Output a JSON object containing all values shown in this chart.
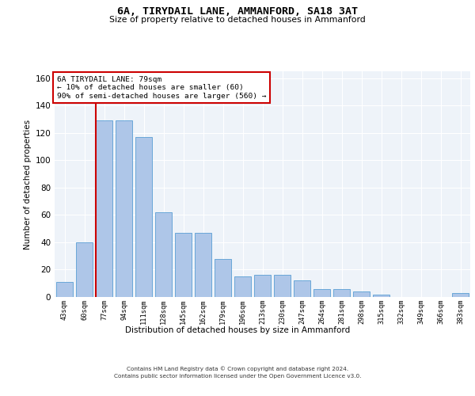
{
  "title1": "6A, TIRYDAIL LANE, AMMANFORD, SA18 3AT",
  "title2": "Size of property relative to detached houses in Ammanford",
  "xlabel": "Distribution of detached houses by size in Ammanford",
  "ylabel": "Number of detached properties",
  "categories": [
    "43sqm",
    "60sqm",
    "77sqm",
    "94sqm",
    "111sqm",
    "128sqm",
    "145sqm",
    "162sqm",
    "179sqm",
    "196sqm",
    "213sqm",
    "230sqm",
    "247sqm",
    "264sqm",
    "281sqm",
    "298sqm",
    "315sqm",
    "332sqm",
    "349sqm",
    "366sqm",
    "383sqm"
  ],
  "values": [
    11,
    40,
    129,
    129,
    117,
    62,
    47,
    47,
    28,
    15,
    16,
    16,
    12,
    6,
    6,
    4,
    2,
    0,
    0,
    0,
    3
  ],
  "bar_color": "#aec6e8",
  "bar_edge_color": "#5a9fd4",
  "vline_x": 2,
  "vline_color": "#cc0000",
  "annotation_text": "6A TIRYDAIL LANE: 79sqm\n← 10% of detached houses are smaller (60)\n90% of semi-detached houses are larger (560) →",
  "annotation_box_color": "#ffffff",
  "annotation_box_edge_color": "#cc0000",
  "ylim": [
    0,
    165
  ],
  "yticks": [
    0,
    20,
    40,
    60,
    80,
    100,
    120,
    140,
    160
  ],
  "background_color": "#eef3f9",
  "grid_color": "#ffffff",
  "footer1": "Contains HM Land Registry data © Crown copyright and database right 2024.",
  "footer2": "Contains public sector information licensed under the Open Government Licence v3.0."
}
